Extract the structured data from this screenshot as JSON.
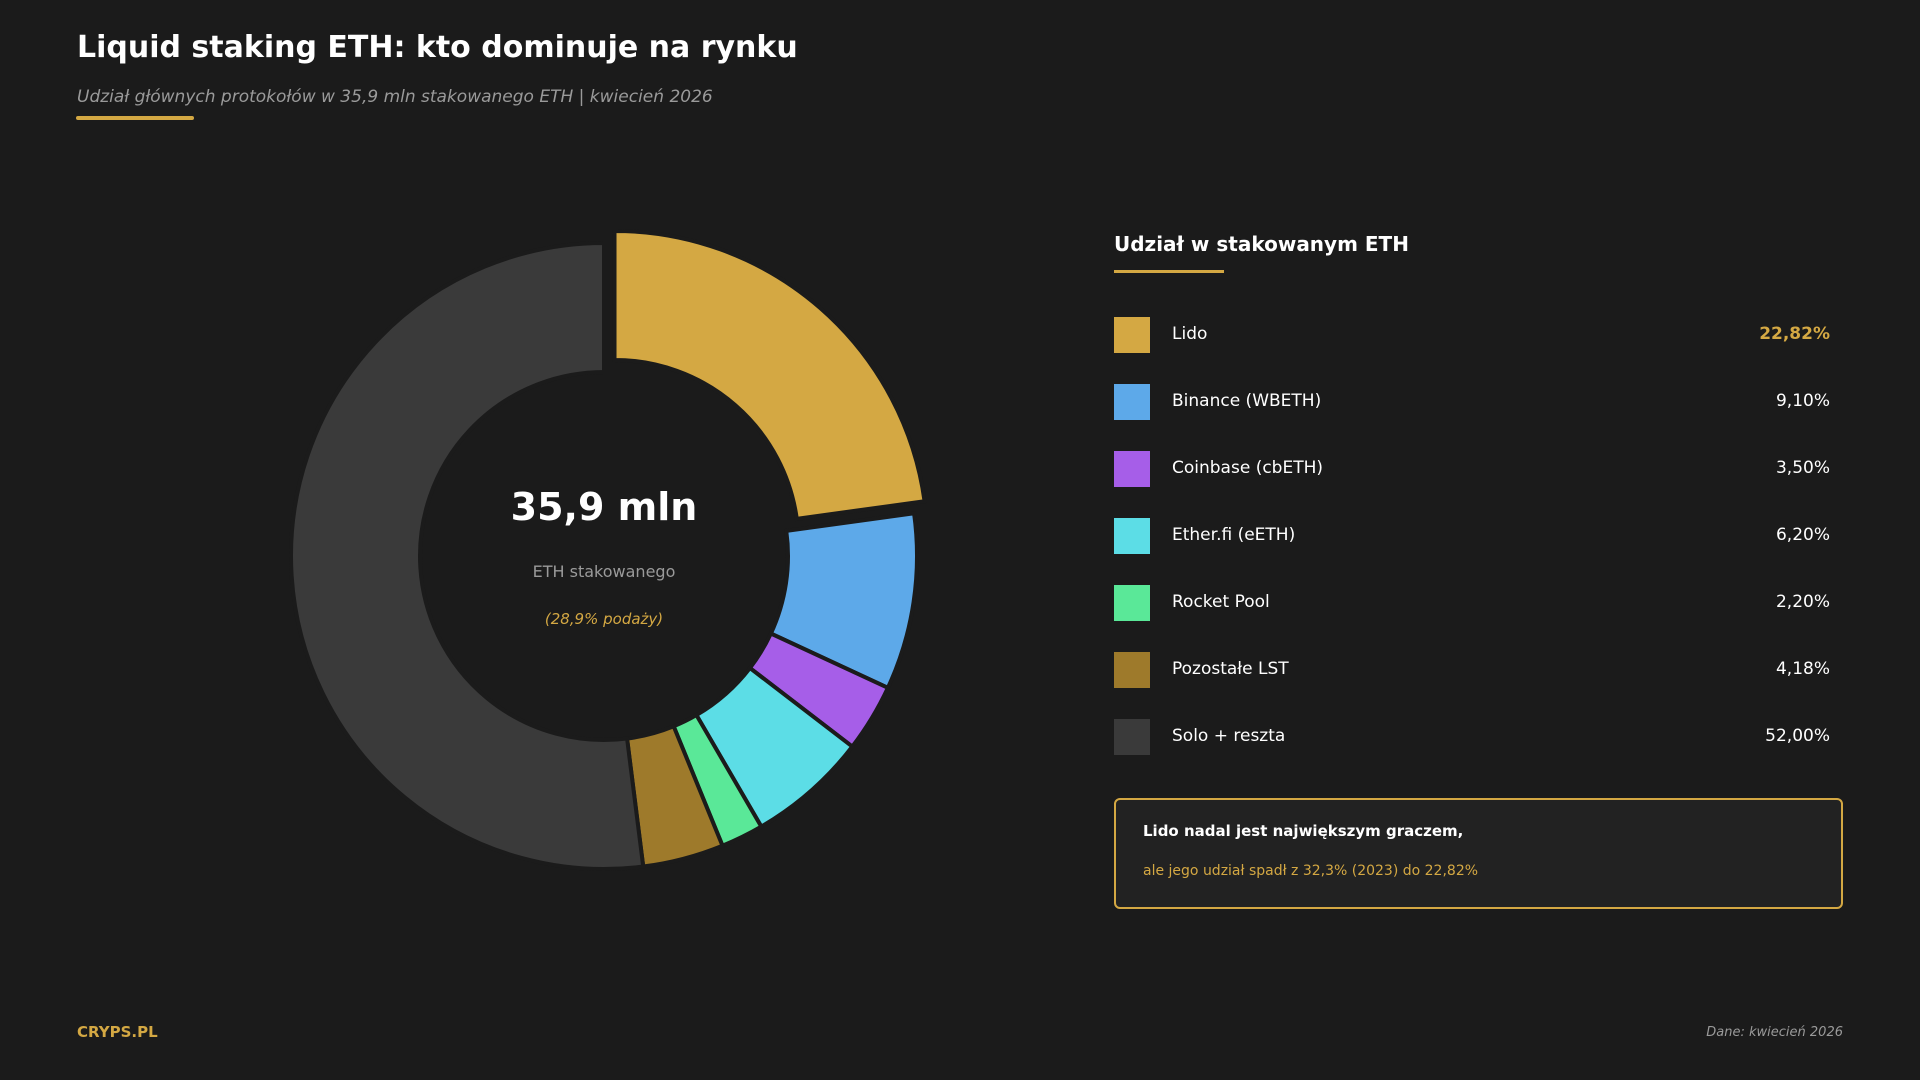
{
  "header": {
    "title": "Liquid staking ETH: kto dominuje na rynku",
    "subtitle": "Udział głównych protokołów w 35,9 mln stakowanego ETH | kwiecień 2026"
  },
  "center": {
    "value": "35,9 mln",
    "label": "ETH stakowanego",
    "note": "(28,9% podaży)"
  },
  "legend": {
    "title": "Udział w stakowanym ETH"
  },
  "note_box": {
    "line1": "Lido nadal jest największym graczem,",
    "line2": "ale jego udział spadł z 32,3% (2023) do 22,82%"
  },
  "footer": {
    "brand": "CRYPS.PL",
    "source": "Dane: kwiecień 2026"
  },
  "colors": {
    "background": "#1b1b1b",
    "accent": "#d4a843"
  },
  "chart_data": {
    "type": "pie",
    "subtype": "donut",
    "title": "Liquid staking ETH: kto dominuje na rynku",
    "unit": "%",
    "highlight": "Lido",
    "slices": [
      {
        "name": "Lido",
        "value": 22.82,
        "label": "22,82%",
        "color": "#d4a843",
        "exploded": true
      },
      {
        "name": "Binance (WBETH)",
        "value": 9.1,
        "label": "9,10%",
        "color": "#5da9e9"
      },
      {
        "name": "Coinbase (cbETH)",
        "value": 3.5,
        "label": "3,50%",
        "color": "#a65ee8"
      },
      {
        "name": "Ether.fi (eETH)",
        "value": 6.2,
        "label": "6,20%",
        "color": "#5cdde6"
      },
      {
        "name": "Rocket Pool",
        "value": 2.2,
        "label": "2,20%",
        "color": "#5ae898"
      },
      {
        "name": "Pozostałe LST",
        "value": 4.18,
        "label": "4,18%",
        "color": "#9e7a2b"
      },
      {
        "name": "Solo + reszta",
        "value": 52.0,
        "label": "52,00%",
        "color": "#3a3a3a"
      }
    ]
  }
}
